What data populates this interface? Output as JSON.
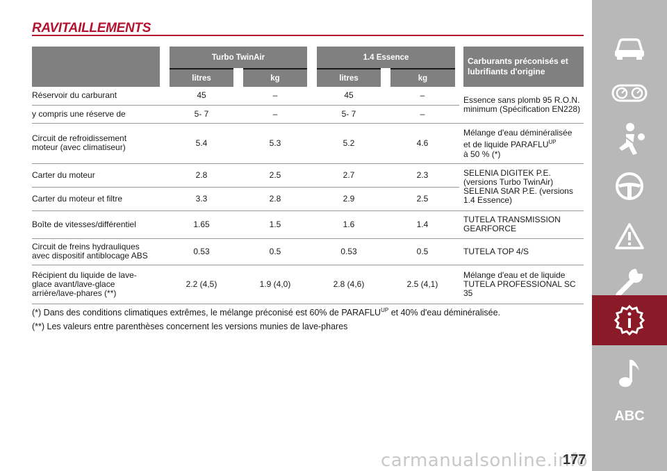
{
  "title": "RAVITAILLEMENTS",
  "table": {
    "group_headers": [
      "Turbo TwinAir",
      "1.4 Essence"
    ],
    "right_header": "Carburants préconisés et lubrifiants d'origine",
    "sub_headers": [
      "litres",
      "kg",
      "litres",
      "kg"
    ],
    "rows": [
      {
        "label": "Réservoir du carburant",
        "v": [
          "45",
          "–",
          "45",
          "–"
        ]
      },
      {
        "label": "y compris une réserve de",
        "v": [
          "5- 7",
          "–",
          "5- 7",
          "–"
        ]
      },
      {
        "label": "Circuit de refroidissement moteur (avec climatiseur)",
        "v": [
          "5.4",
          "5.3",
          "5.2",
          "4.6"
        ]
      },
      {
        "label": "Carter du moteur",
        "v": [
          "2.8",
          "2.5",
          "2.7",
          "2.3"
        ]
      },
      {
        "label": "Carter du moteur et filtre",
        "v": [
          "3.3",
          "2.8",
          "2.9",
          "2.5"
        ]
      },
      {
        "label": "Boîte de vitesses/différentiel",
        "v": [
          "1.65",
          "1.5",
          "1.6",
          "1.4"
        ]
      },
      {
        "label": "Circuit de freins hydrauliques avec dispositif antiblocage ABS",
        "v": [
          "0.53",
          "0.5",
          "0.53",
          "0.5"
        ]
      },
      {
        "label": "Récipient du liquide de lave-glace avant/lave-glace arrière/lave-phares (**)",
        "v": [
          "2.2 (4,5)",
          "1.9 (4,0)",
          "2.8 (4,6)",
          "2.5 (4,1)"
        ]
      }
    ],
    "fluids": {
      "fuel": "Essence sans plomb 95 R.O.N. minimum (Spécification EN228)",
      "coolant_a": "Mélange d'eau déminéralisée et de liquide PARAFLU",
      "coolant_sup": "UP",
      "coolant_b": "à 50 % (*)",
      "engine_oil": "SELENIA DIGITEK P.E. (versions Turbo TwinAir) SELENIA StAR P.E. (versions 1.4 Essence)",
      "gearbox": "TUTELA TRANSMISSION GEARFORCE",
      "brake": "TUTELA TOP 4/S",
      "washer": "Mélange d'eau et de liquide TUTELA PROFESSIONAL SC 35"
    }
  },
  "notes": {
    "n1_a": "(*) Dans des conditions climatiques extrêmes, le mélange préconisé est 60% de PARAFLU",
    "n1_sup": "UP",
    "n1_b": " et 40% d'eau déminéralisée.",
    "n2": "(**) Les valeurs entre parenthèses concernent les versions munies de lave-phares"
  },
  "sidebar": {
    "icons": [
      "car-icon",
      "dashboard-gauges-icon",
      "seatbelt-airbag-icon",
      "steering-wheel-icon",
      "warning-triangle-icon",
      "wrench-icon",
      "info-icon",
      "music-note-icon"
    ],
    "abc_label": "ABC",
    "active_index": 6,
    "active_color": "#8a1a27",
    "bg_color": "#b8b8b8"
  },
  "page_number": "177",
  "watermark": "carmanualsonline.info"
}
